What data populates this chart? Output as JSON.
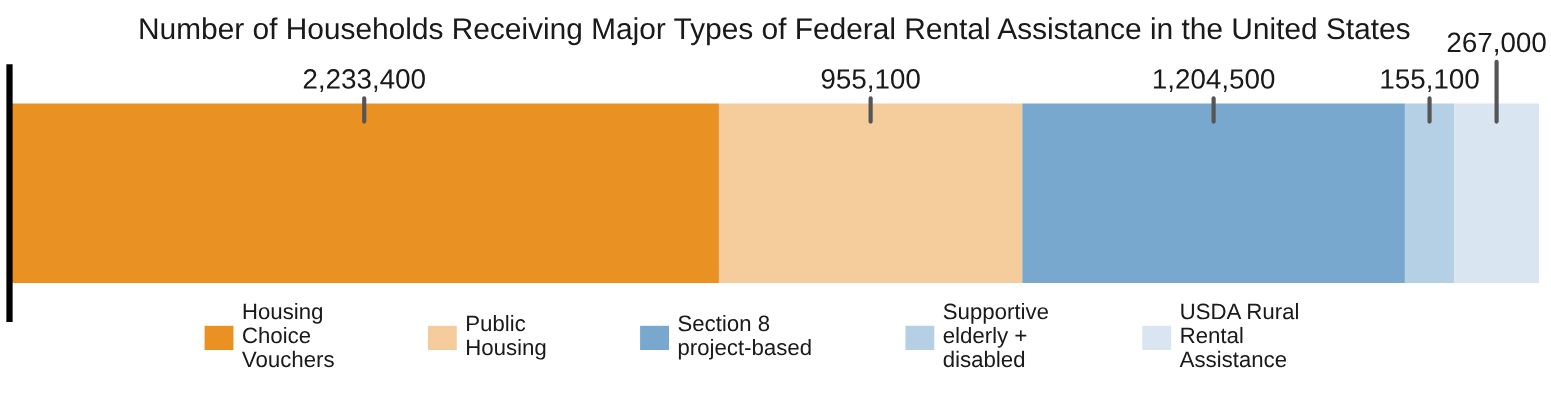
{
  "chart_data": {
    "type": "bar",
    "orientation": "horizontal",
    "stacked": true,
    "title": "Number of Households Receiving Major Types of Federal Rental Assistance in the United States",
    "categories": [
      null
    ],
    "series": [
      {
        "name": "Housing\nChoice\nVouchers",
        "color": "#ea9124",
        "values": [
          2233400
        ],
        "value_labels": [
          "2,233,400"
        ]
      },
      {
        "name": "Public\nHousing",
        "color": "#f5cd9c",
        "values": [
          955100
        ],
        "value_labels": [
          "955,100"
        ]
      },
      {
        "name": "Section 8\nproject-based",
        "color": "#78a8cd",
        "values": [
          1204500
        ],
        "value_labels": [
          "1,204,500"
        ]
      },
      {
        "name": "Supportive\nelderly +\ndisabled",
        "color": "#b5d0e5",
        "values": [
          155100
        ],
        "value_labels": [
          "155,100"
        ]
      },
      {
        "name": "USDA Rural\nRental\nAssistance",
        "color": "#d9e5f0",
        "values": [
          267000
        ],
        "value_labels": [
          "267,000"
        ]
      }
    ],
    "xlim": [
      0,
      4815100
    ],
    "tick_labels": false,
    "legend": "bottom"
  }
}
